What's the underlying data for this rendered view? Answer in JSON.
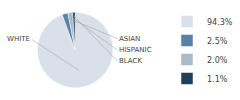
{
  "chart_data": {
    "type": "pie",
    "categories": [
      "WHITE",
      "ASIAN",
      "HISPANIC",
      "BLACK"
    ],
    "values": [
      94.3,
      2.5,
      2.0,
      1.1
    ],
    "value_labels": [
      "94.3%",
      "2.5%",
      "2.0%",
      "1.1%"
    ],
    "colors": [
      "#d9e0ea",
      "#5b80a6",
      "#a8bbc8",
      "#1e3f5a"
    ],
    "legend": "right"
  }
}
